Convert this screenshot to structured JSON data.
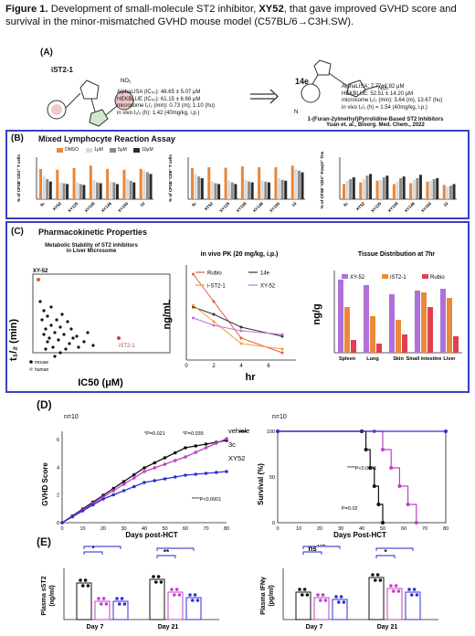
{
  "caption": {
    "prefix": "Figure 1.",
    "text1": " Development of small-molecule ST2 inhibitor, ",
    "compound": "XY52",
    "text2": ", that gave improved GVHD score and survival in the minor-mismatched GVHD mouse model (C57BL/6→C3H.SW)."
  },
  "panelA": {
    "label": "(A)",
    "left_name": "iST2-1",
    "left_props": [
      "AlphaLISA (IC₅₀): 46.65 ± 5.07 μM",
      "HEKBLUE (IC₅₀): 61.15 ± 6.68 μM",
      "microsome t₁/₂ (min): 0.73 (m), 1.10 (hu)",
      "in vivo t₁/₂ (h): 1.42 (40mg/kg, i.p.)"
    ],
    "right_name": "14e",
    "right_props": [
      "AlphaLISA: 7.77±2.82 μM",
      "HEKBLUE: 52.51 ± 14.20 μM",
      "microsome t₁/₂ (min): 3.64 (m), 13.67 (hu)",
      "in vivo t₁/₂ (h) = 1.54 (40mg/kg, i.p.)"
    ],
    "ref1": "1-(Furan-2ylmethyl)Pyrrolidine-Based ST2 Inhibitors",
    "ref2": "Yuan et. al., Bioorg. Med. Chem., 2022"
  },
  "panelB": {
    "label": "(B)",
    "title": "Mixed Lymphocyte Reaction Assay",
    "legend": [
      {
        "name": "DMSO",
        "color": "#e8863a"
      },
      {
        "name": "1μM",
        "color": "#d9d9d9"
      },
      {
        "name": "5μM",
        "color": "#8c8c8c"
      },
      {
        "name": "10μM",
        "color": "#2b2b2b"
      }
    ],
    "categories": [
      "3c",
      "XY52",
      "XY125",
      "XY148",
      "XY146",
      "XY150",
      "10"
    ]
  },
  "panelC": {
    "label": "(C)",
    "title": "Pharmacokinetic Properties",
    "scatter_title1": "Metabolic Stability of ST2 inhibitors",
    "scatter_title2": "in Liver Microsome",
    "scatter_xlabel": "IC50 (μM)",
    "scatter_ylabel": "t₁/₂ (min)",
    "scatter_xy52": "XY-52",
    "scatter_ist2": "iST2-1",
    "scatter_legend": [
      "mouse",
      "human"
    ],
    "pk_title": "in vivo PK (20 mg/kg, i.p.)",
    "pk_ylabel": "ng/mL",
    "pk_xlabel": "hr",
    "pk_legend": [
      {
        "name": "Rubio",
        "color": "#e05a40"
      },
      {
        "name": "14e",
        "color": "#333333"
      },
      {
        "name": "i-ST2-1",
        "color": "#f0a030"
      },
      {
        "name": "XY-52",
        "color": "#c070e0"
      }
    ],
    "td_title": "Tissue Distribution at 7hr",
    "td_ylabel": "ng/g",
    "td_legend": [
      {
        "name": "XY-52",
        "color": "#b070d8"
      },
      {
        "name": "iST2-1",
        "color": "#e88a3a"
      },
      {
        "name": "Rubio",
        "color": "#e04050"
      }
    ],
    "td_categories": [
      "Spleen",
      "Lung",
      "Skin",
      "Small intestine",
      "Liver"
    ]
  },
  "panelD": {
    "label": "(D)",
    "n_left": "n=10",
    "n_right": "n=10",
    "legend": [
      {
        "name": "vehicle",
        "color": "#111111"
      },
      {
        "name": "3c",
        "color": "#c040c8"
      },
      {
        "name": "XY52",
        "color": "#3030d0"
      }
    ],
    "ylabel_left": "GVHD Score",
    "xlabel_left": "Days post-HCT",
    "ylabel_right": "Survival (%)",
    "xlabel_right": "Days Post-HCT",
    "p1": "*P=0.021",
    "p2": "*P=0.035",
    "p3": "****P<0.0001",
    "p4": "****P<0.0001",
    "p5": "P=0.02"
  },
  "panelE": {
    "label": "(E)",
    "ylabel_left1": "Plasma sST2",
    "ylabel_left2": "(ng/ml)",
    "ylabel_right1": "Plasma IFNγ",
    "ylabel_right2": "(pg/ml)",
    "x_labels": [
      "Day 7",
      "Day 21"
    ],
    "sig": [
      "*",
      "*",
      "**",
      "***",
      "ns",
      "ns",
      "*",
      "**"
    ]
  }
}
